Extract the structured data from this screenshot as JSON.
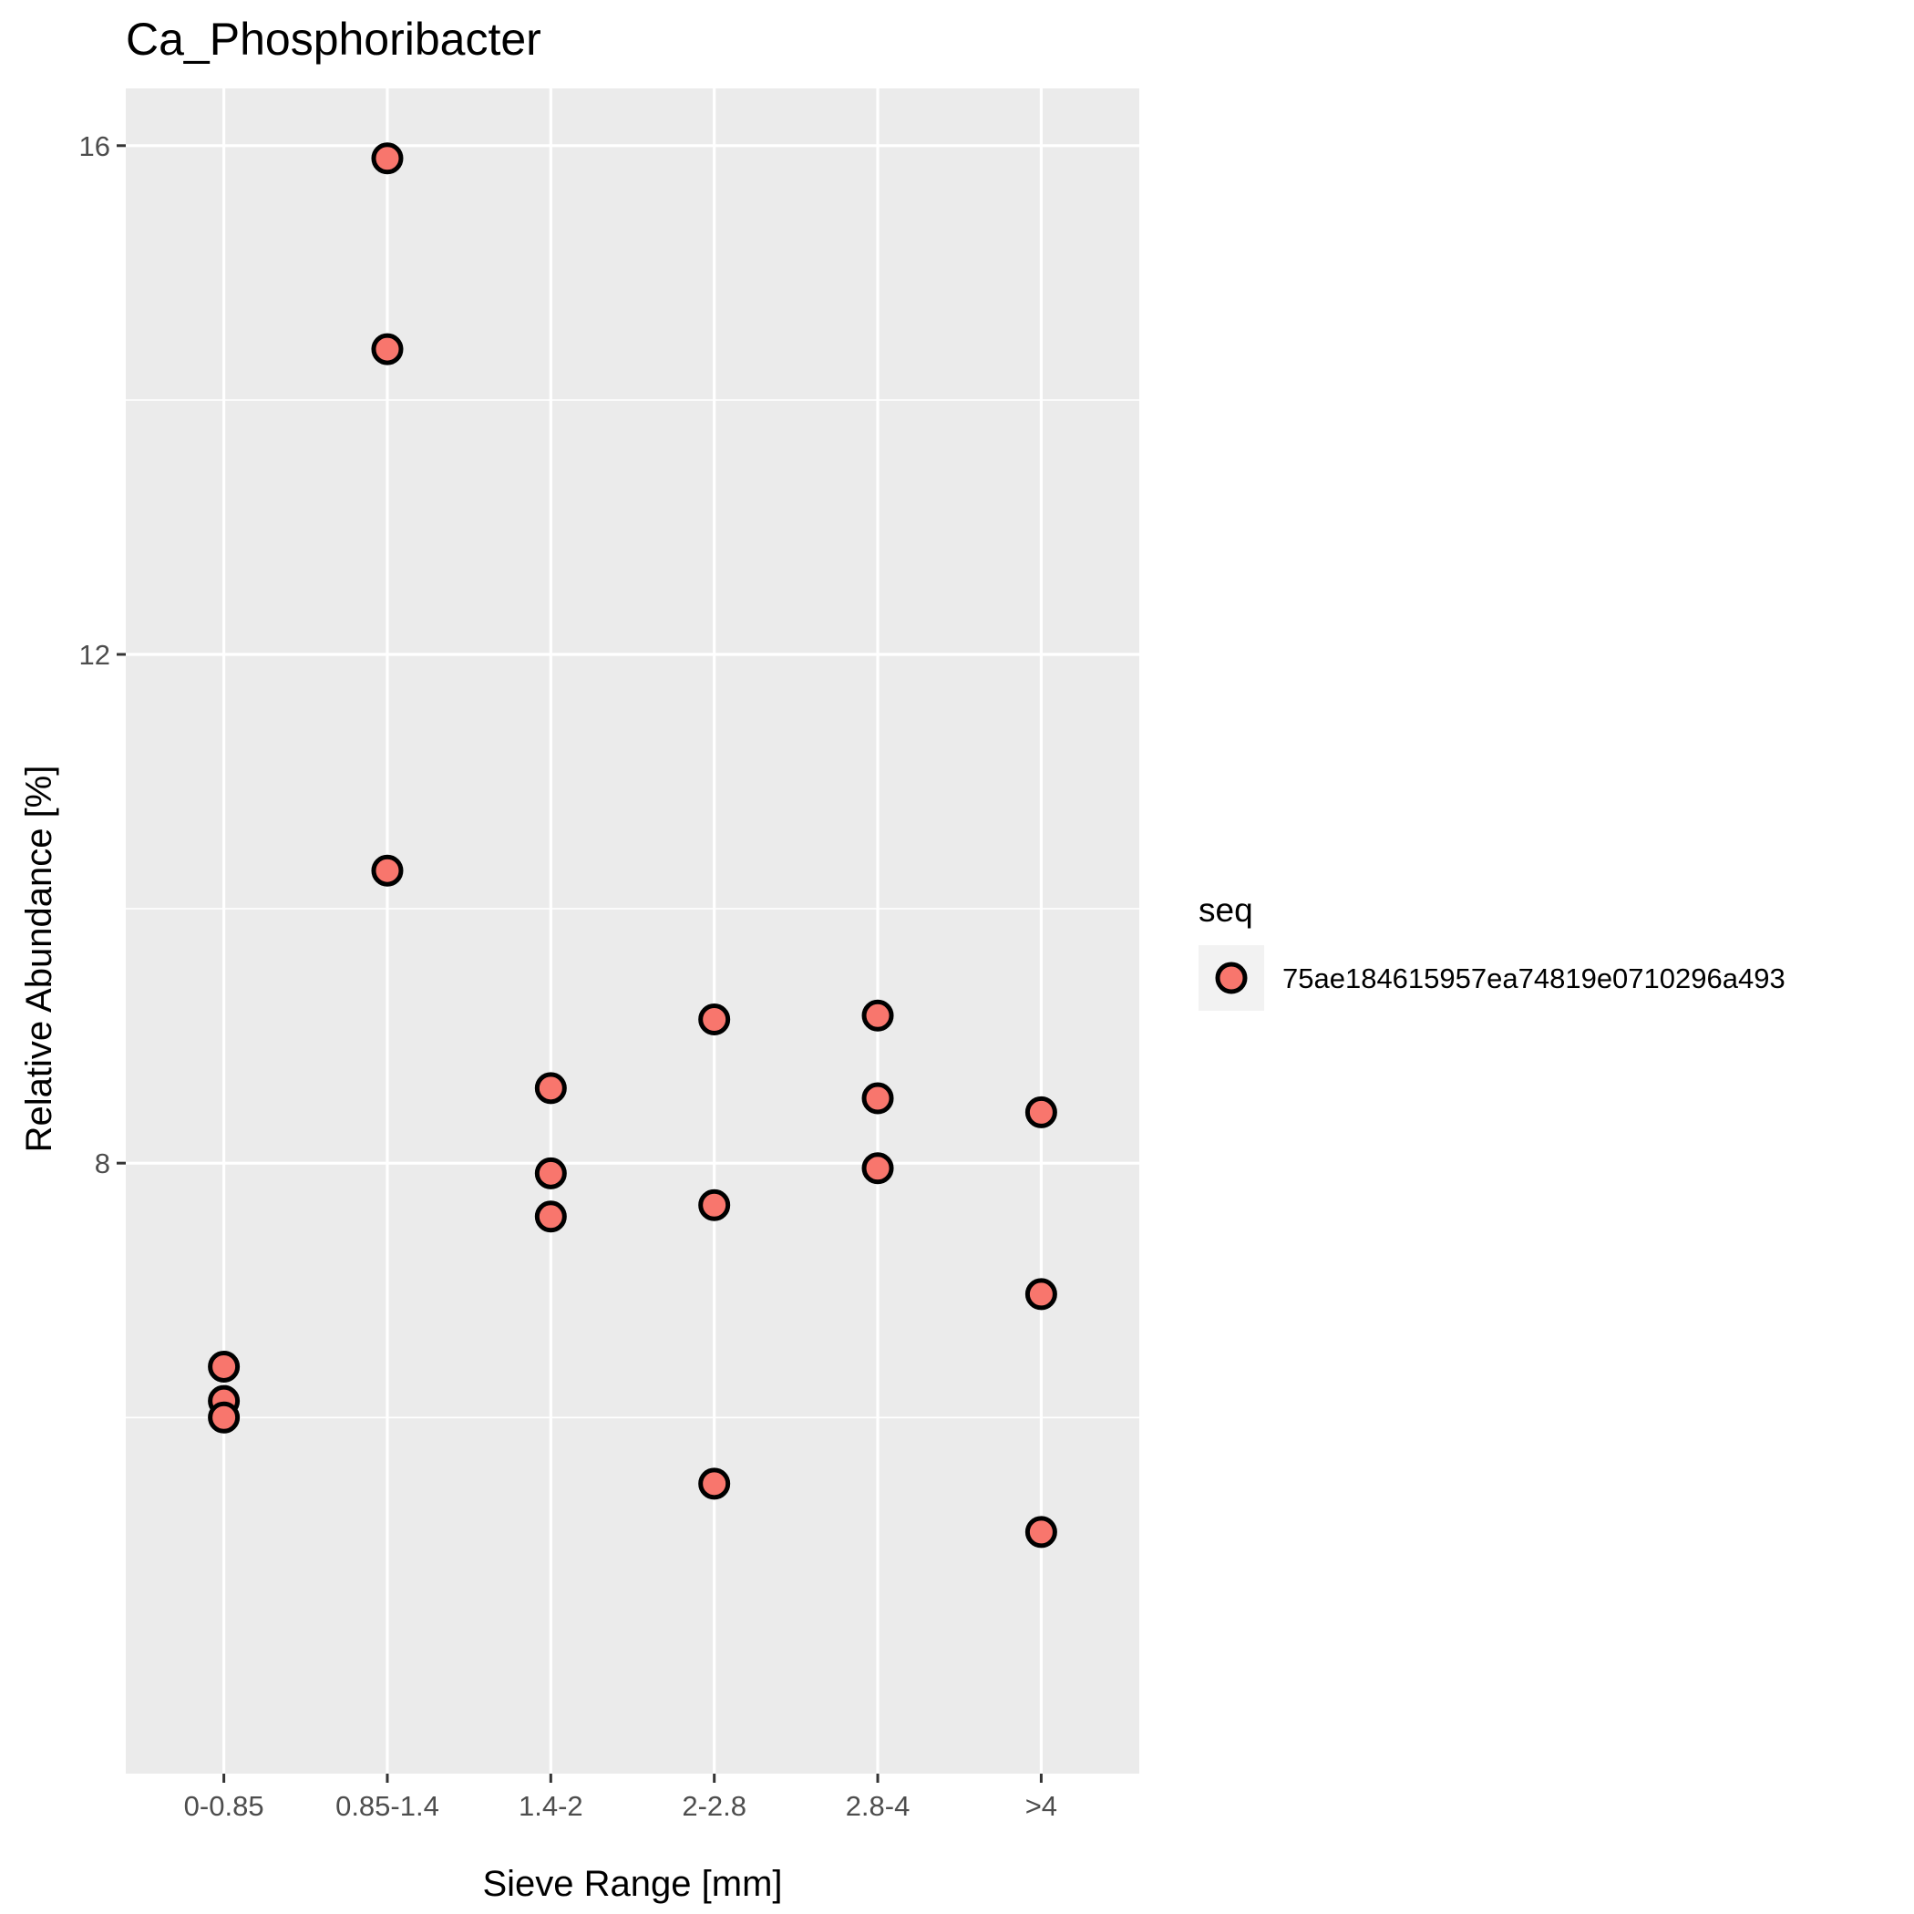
{
  "chart_data": {
    "type": "scatter",
    "title": "Ca_Phosphoribacter",
    "xlabel": "Sieve Range [mm]",
    "ylabel": "Relative Abundance [%]",
    "categories": [
      "0-0.85",
      "0.85-1.4",
      "1.4-2",
      "2-2.8",
      "2.8-4",
      ">4"
    ],
    "ylim": [
      3.2,
      16.45
    ],
    "yticks": [
      8,
      12,
      16
    ],
    "grid": true,
    "legend": {
      "title": "seq",
      "position": "right",
      "entries": [
        "75ae184615957ea74819e0710296a493"
      ]
    },
    "marker": {
      "fill": "#f8766d",
      "stroke": "#000000",
      "shape": "circle"
    },
    "series": [
      {
        "name": "75ae184615957ea74819e0710296a493",
        "points": [
          {
            "x": "0-0.85",
            "y": 6.4
          },
          {
            "x": "0-0.85",
            "y": 6.13
          },
          {
            "x": "0-0.85",
            "y": 6.0
          },
          {
            "x": "0.85-1.4",
            "y": 15.9
          },
          {
            "x": "0.85-1.4",
            "y": 14.4
          },
          {
            "x": "0.85-1.4",
            "y": 10.3
          },
          {
            "x": "1.4-2",
            "y": 8.59
          },
          {
            "x": "1.4-2",
            "y": 7.92
          },
          {
            "x": "1.4-2",
            "y": 7.58
          },
          {
            "x": "2-2.8",
            "y": 9.13
          },
          {
            "x": "2-2.8",
            "y": 7.67
          },
          {
            "x": "2-2.8",
            "y": 5.48
          },
          {
            "x": "2.8-4",
            "y": 9.16
          },
          {
            "x": "2.8-4",
            "y": 8.51
          },
          {
            "x": "2.8-4",
            "y": 7.96
          },
          {
            "x": ">4",
            "y": 8.4
          },
          {
            "x": ">4",
            "y": 6.97
          },
          {
            "x": ">4",
            "y": 5.1
          }
        ]
      }
    ]
  }
}
